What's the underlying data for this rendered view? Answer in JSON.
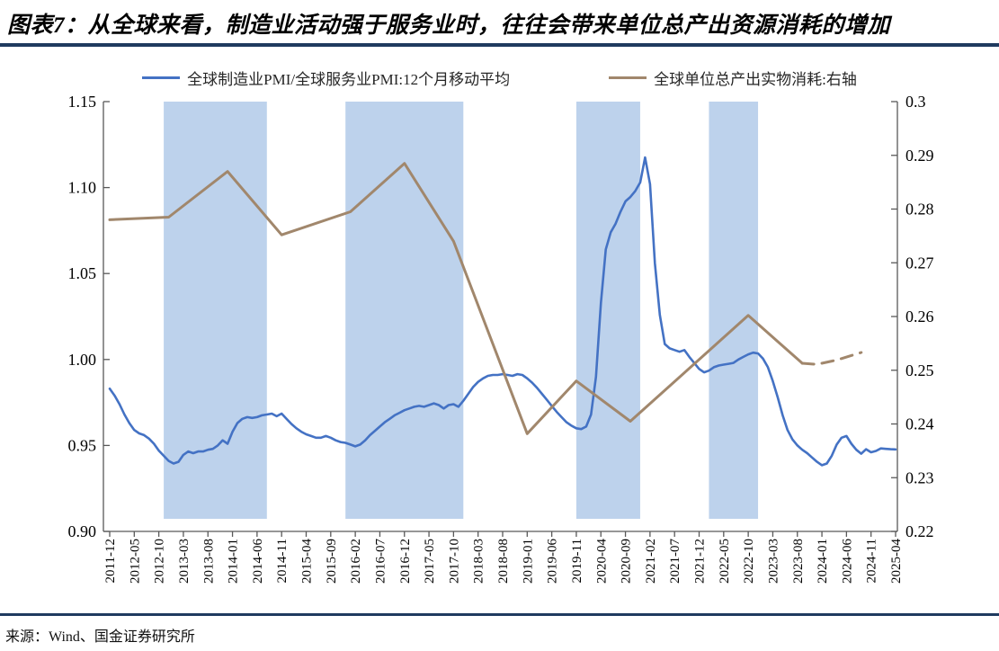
{
  "title": "图表7：从全球来看，制造业活动强于服务业时，往往会带来单位总产出资源消耗的增加",
  "source": "来源：Wind、国金证券研究所",
  "colors": {
    "separator_navy": "#1F3A5F",
    "band_blue": "#BDD2EC",
    "series_blue": "#4472C4",
    "series_brown": "#A1876C",
    "axis_line": "#595959",
    "label_text": "#000000"
  },
  "legend": [
    {
      "label": "全球制造业PMI/全球服务业PMI:12个月移动平均",
      "color": "#4472C4"
    },
    {
      "label": "全球单位总产出实物消耗:右轴",
      "color": "#A1876C"
    }
  ],
  "chart_data": {
    "type": "line",
    "title": "",
    "x_base_month": "2011-12",
    "x_tick_labels": [
      "2011-12",
      "2012-05",
      "2012-10",
      "2013-03",
      "2013-08",
      "2014-01",
      "2014-06",
      "2014-11",
      "2015-04",
      "2015-09",
      "2016-02",
      "2016-07",
      "2016-12",
      "2017-05",
      "2017-10",
      "2018-03",
      "2018-08",
      "2019-01",
      "2019-06",
      "2019-11",
      "2020-04",
      "2020-09",
      "2021-02",
      "2021-07",
      "2021-12",
      "2022-05",
      "2022-10",
      "2023-03",
      "2023-08",
      "2024-01",
      "2024-06",
      "2024-11",
      "2025-04"
    ],
    "left_axis": {
      "min": 0.9,
      "max": 1.15,
      "ticks": [
        "0.90",
        "0.95",
        "1.00",
        "1.05",
        "1.10",
        "1.15"
      ]
    },
    "right_axis": {
      "min": 0.22,
      "max": 0.3,
      "ticks": [
        "0.22",
        "0.23",
        "0.24",
        "0.25",
        "0.26",
        "0.27",
        "0.28",
        "0.29",
        "0.3"
      ]
    },
    "grid": false,
    "legend_position": "top",
    "shaded_bands": [
      {
        "from": "2012-11",
        "to": "2014-08"
      },
      {
        "from": "2015-12",
        "to": "2017-12"
      },
      {
        "from": "2019-11",
        "to": "2020-12"
      },
      {
        "from": "2022-02",
        "to": "2022-12"
      }
    ],
    "series": [
      {
        "name": "全球制造业PMI/全球服务业PMI:12个月移动平均",
        "axis": "left",
        "color": "#4472C4",
        "style": "solid",
        "freq": "monthly",
        "start": "2011-12",
        "values": [
          0.983,
          0.979,
          0.974,
          0.968,
          0.963,
          0.959,
          0.957,
          0.956,
          0.954,
          0.951,
          0.947,
          0.944,
          0.941,
          0.9395,
          0.9405,
          0.9445,
          0.9465,
          0.9455,
          0.9465,
          0.9465,
          0.9475,
          0.948,
          0.95,
          0.953,
          0.951,
          0.958,
          0.963,
          0.9655,
          0.9665,
          0.966,
          0.9665,
          0.9675,
          0.968,
          0.9685,
          0.967,
          0.9685,
          0.9655,
          0.9625,
          0.96,
          0.958,
          0.9565,
          0.9555,
          0.9545,
          0.9545,
          0.9555,
          0.9545,
          0.953,
          0.952,
          0.9515,
          0.9505,
          0.9495,
          0.9505,
          0.953,
          0.956,
          0.9585,
          0.961,
          0.9635,
          0.9655,
          0.9675,
          0.969,
          0.9705,
          0.9715,
          0.9725,
          0.973,
          0.9725,
          0.9735,
          0.9745,
          0.9735,
          0.9715,
          0.9735,
          0.974,
          0.9725,
          0.976,
          0.98,
          0.984,
          0.987,
          0.989,
          0.9905,
          0.991,
          0.991,
          0.9915,
          0.991,
          0.9905,
          0.9915,
          0.991,
          0.989,
          0.9865,
          0.9835,
          0.98,
          0.9765,
          0.973,
          0.9695,
          0.9665,
          0.9635,
          0.9615,
          0.96,
          0.9595,
          0.961,
          0.968,
          0.99,
          1.033,
          1.064,
          1.074,
          1.079,
          1.086,
          1.092,
          1.0945,
          1.098,
          1.103,
          1.1175,
          1.102,
          1.056,
          1.026,
          1.009,
          1.0065,
          1.0055,
          1.0045,
          1.0055,
          1.0015,
          0.998,
          0.9945,
          0.9925,
          0.9935,
          0.9955,
          0.9965,
          0.997,
          0.9975,
          0.998,
          1.0,
          1.0015,
          1.003,
          1.004,
          1.0035,
          1.0005,
          0.9955,
          0.9875,
          0.978,
          0.9675,
          0.959,
          0.9535,
          0.95,
          0.9475,
          0.9455,
          0.943,
          0.9405,
          0.9385,
          0.9395,
          0.944,
          0.9505,
          0.9545,
          0.9555,
          0.951,
          0.9475,
          0.9452,
          0.9478,
          0.946,
          0.9468,
          0.9483,
          0.948,
          0.9478,
          0.9477
        ]
      },
      {
        "name": "全球单位总产出实物消耗:右轴",
        "axis": "right",
        "color": "#A1876C",
        "style": "solid",
        "points": [
          [
            0,
            0.278
          ],
          [
            12,
            0.2785
          ],
          [
            24,
            0.287
          ],
          [
            35,
            0.2752
          ],
          [
            49,
            0.2795
          ],
          [
            60,
            0.2885
          ],
          [
            70,
            0.274
          ],
          [
            85,
            0.2382
          ],
          [
            95,
            0.248
          ],
          [
            106,
            0.2405
          ],
          [
            130,
            0.2602
          ],
          [
            141,
            0.2513
          ]
        ]
      },
      {
        "name": "全球单位总产出实物消耗:右轴(预测虚线)",
        "axis": "right",
        "color": "#A1876C",
        "style": "dashed",
        "points": [
          [
            141,
            0.2513
          ],
          [
            144,
            0.2511
          ],
          [
            148,
            0.2519
          ],
          [
            153,
            0.2533
          ]
        ]
      }
    ]
  }
}
